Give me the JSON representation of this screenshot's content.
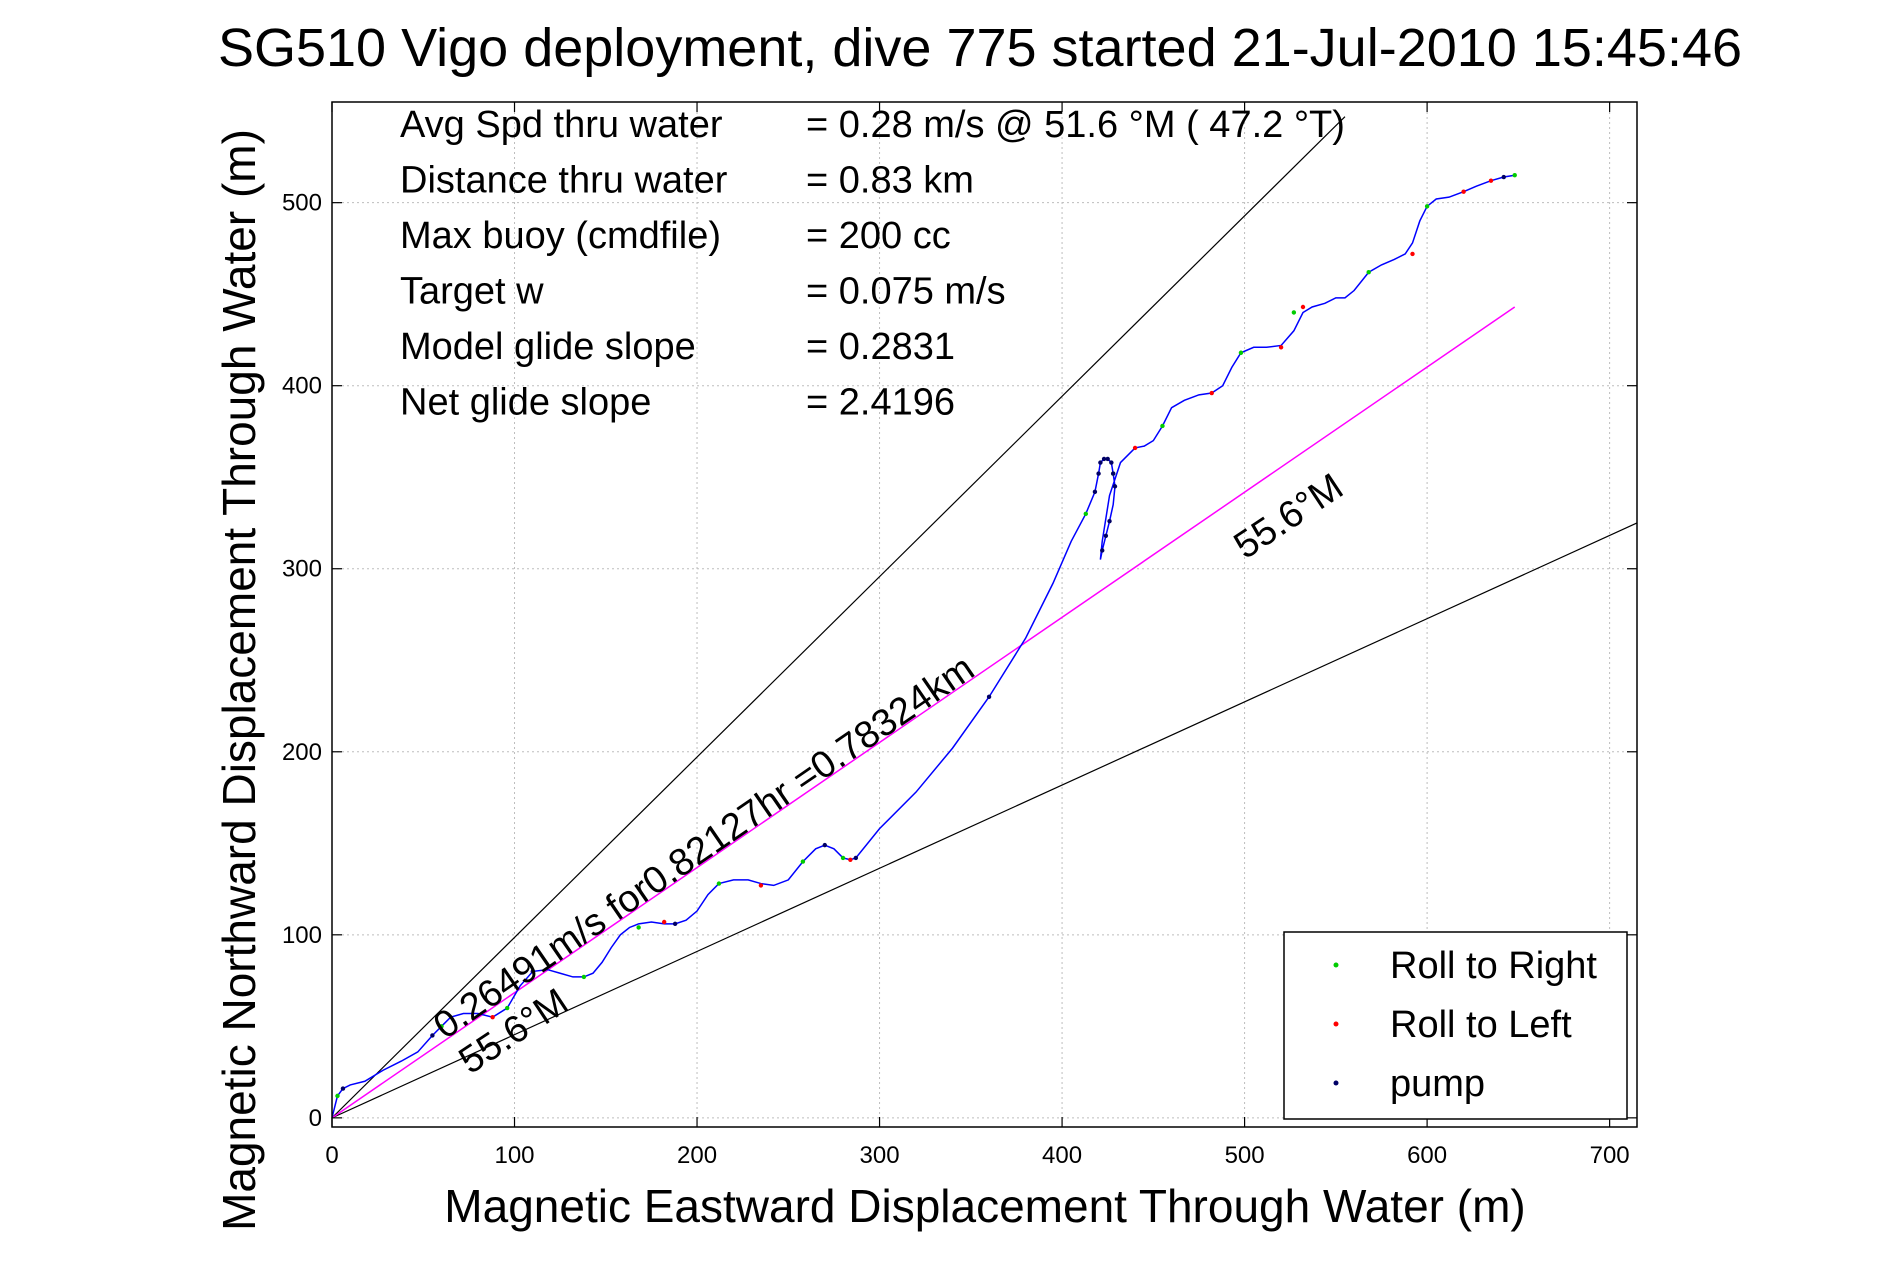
{
  "chart_data": {
    "type": "line",
    "title": "SG510 Vigo deployment, dive 775 started 21-Jul-2010 15:45:46",
    "xlabel": "Magnetic Eastward Displacement Through Water (m)",
    "ylabel": "Magnetic Northward Displacement Through Water (m)",
    "xlim": [
      0,
      715
    ],
    "ylim": [
      -5,
      555
    ],
    "xticks": [
      0,
      100,
      200,
      300,
      400,
      500,
      600,
      700
    ],
    "yticks": [
      0,
      100,
      200,
      300,
      400,
      500
    ],
    "grid": true,
    "legend_position": "bottom-right",
    "stats": [
      {
        "label": "Avg Spd thru water",
        "value": "=  0.28 m/s @  51.6 °M ( 47.2 °T)"
      },
      {
        "label": "Distance thru water",
        "value": "=  0.83 km"
      },
      {
        "label": "Max buoy (cmdfile)",
        "value": "= 200 cc"
      },
      {
        "label": "Target w",
        "value": "= 0.075 m/s"
      },
      {
        "label": "Model glide slope",
        "value": "= 0.2831"
      },
      {
        "label": "Net glide slope",
        "value": "= 2.4196"
      }
    ],
    "annotations": {
      "heading_upper": "55.6°M",
      "heading_lower": "55.6°M",
      "speed_distance": "0.26491m/s for0.82127hr =0.78324km"
    },
    "heading_line": {
      "x": [
        0,
        648
      ],
      "y": [
        0,
        443
      ]
    },
    "envelope_lines": [
      {
        "x": [
          0,
          555
        ],
        "y": [
          0,
          547
        ]
      },
      {
        "x": [
          0,
          715
        ],
        "y": [
          0,
          325
        ]
      }
    ],
    "track": {
      "x": [
        0,
        3,
        6,
        10,
        18,
        28,
        38,
        47,
        55,
        60,
        65,
        72,
        80,
        88,
        96,
        103,
        110,
        118,
        125,
        132,
        138,
        143,
        148,
        153,
        158,
        163,
        168,
        175,
        182,
        188,
        194,
        200,
        206,
        212,
        220,
        228,
        235,
        242,
        250,
        258,
        265,
        270,
        275,
        280,
        284,
        287,
        300,
        320,
        340,
        360,
        380,
        395,
        405,
        413,
        418,
        420,
        421,
        423,
        425,
        427,
        428,
        429,
        428,
        426,
        424,
        422,
        421,
        422,
        426,
        432,
        440,
        445,
        450,
        455,
        460,
        467,
        475,
        482,
        488,
        493,
        498,
        505,
        512,
        520,
        527,
        532,
        537,
        544,
        550,
        555,
        560,
        568,
        575,
        582,
        588,
        592,
        596,
        600,
        605,
        612,
        620,
        627,
        635,
        642,
        648
      ],
      "y": [
        0,
        12,
        16,
        18,
        20,
        26,
        31,
        36,
        45,
        50,
        55,
        57,
        57,
        55,
        60,
        72,
        80,
        81,
        79,
        77,
        77,
        79,
        85,
        93,
        100,
        104,
        106,
        107,
        106,
        106,
        108,
        113,
        122,
        128,
        130,
        130,
        128,
        127,
        130,
        140,
        147,
        149,
        147,
        142,
        141,
        142,
        158,
        178,
        202,
        230,
        262,
        292,
        315,
        330,
        342,
        352,
        358,
        360,
        360,
        358,
        352,
        345,
        335,
        326,
        318,
        310,
        305,
        315,
        340,
        358,
        366,
        367,
        370,
        378,
        388,
        392,
        395,
        396,
        400,
        410,
        418,
        421,
        421,
        422,
        430,
        440,
        443,
        445,
        448,
        448,
        452,
        462,
        466,
        469,
        472,
        478,
        490,
        498,
        502,
        503,
        506,
        509,
        512,
        514,
        515
      ]
    },
    "series": [
      {
        "name": "Roll to Right",
        "color": "#00cc00",
        "x": [
          3,
          60,
          96,
          138,
          168,
          212,
          258,
          280,
          413,
          428,
          455,
          498,
          527,
          568,
          600,
          648
        ],
        "y": [
          12,
          50,
          60,
          77,
          104,
          128,
          140,
          142,
          330,
          352,
          378,
          418,
          440,
          462,
          498,
          515
        ]
      },
      {
        "name": "Roll to Left",
        "color": "#ff0000",
        "x": [
          88,
          182,
          235,
          284,
          440,
          482,
          520,
          532,
          592,
          620,
          635
        ],
        "y": [
          55,
          107,
          127,
          141,
          366,
          396,
          421,
          443,
          472,
          506,
          512
        ]
      },
      {
        "name": "pump",
        "color": "#000066",
        "x": [
          6,
          55,
          110,
          188,
          270,
          287,
          360,
          418,
          420,
          421,
          423,
          425,
          427,
          428,
          429,
          426,
          424,
          422,
          642
        ],
        "y": [
          16,
          45,
          80,
          106,
          149,
          142,
          230,
          342,
          352,
          358,
          360,
          360,
          358,
          352,
          345,
          326,
          318,
          310,
          514
        ]
      }
    ],
    "colors": {
      "track": "#0000ff",
      "heading": "#ff00ff",
      "envelope": "#000000",
      "grid": "#bdbdbd"
    }
  }
}
